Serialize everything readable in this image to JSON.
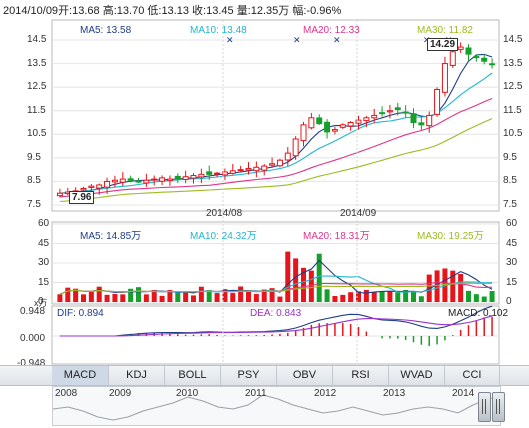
{
  "header": {
    "date": "2014/10/09",
    "open_label": "开:",
    "open": "13.68",
    "high_label": "高:",
    "high": "13.70",
    "low_label": "低:",
    "low": "13.13",
    "close_label": "收:",
    "close": "13.45",
    "volume_label": "量:",
    "volume": "12.35万",
    "change_label": "幅:",
    "change": "-0.96%"
  },
  "price_panel": {
    "ma5": "MA5: 13.58",
    "ma10": "MA10: 13.48",
    "ma20": "MA20: 12.33",
    "ma30": "MA30: 11.82",
    "y_ticks": [
      "14.5",
      "13.5",
      "12.5",
      "11.5",
      "10.5",
      "9.5",
      "8.5",
      "7.5"
    ],
    "y_ticks_right": [
      "14.5",
      "13.5",
      "12.5",
      "11.5",
      "10.5",
      "9.5",
      "8.5",
      "7.5"
    ],
    "max_callout": "14.29",
    "min_callout": "7.96",
    "x_labels": [
      "2014/08",
      "2014/09"
    ]
  },
  "volume_panel": {
    "ma5": "MA5: 14.85万",
    "ma10": "MA10: 24.32万",
    "ma20": "MA20: 18.31万",
    "ma30": "MA30: 19.25万",
    "y_ticks": [
      "60",
      "45",
      "30",
      "15",
      "0"
    ],
    "y_ticks_right": [
      "60",
      "45",
      "30",
      "15",
      "0"
    ],
    "unit": "x万"
  },
  "macd_panel": {
    "dif": "DIF: 0.894",
    "dea": "DEA: 0.843",
    "macd": "MACD: 0.102",
    "y_ticks": [
      "0.948",
      "0.000",
      "-0.948"
    ]
  },
  "tabs": [
    "MACD",
    "KDJ",
    "BOLL",
    "PSY",
    "OBV",
    "RSI",
    "WVAD",
    "CCI"
  ],
  "active_tab": "MACD",
  "overview": {
    "years": [
      "2008",
      "2009",
      "2010",
      "2011",
      "2012",
      "2013",
      "2014"
    ]
  },
  "colors": {
    "up": "#e8141b",
    "down": "#14a02a",
    "ma5": "#1f3c88",
    "ma10": "#1fb8d0",
    "ma20": "#e0338a",
    "ma30": "#9cbb22",
    "grid": "#e4e4e4"
  },
  "chart_data": {
    "type": "candlestick",
    "series_ma_close": [
      8.0,
      8.05,
      8.1,
      8.2,
      8.3,
      8.35,
      8.5,
      8.55,
      8.6,
      8.55,
      8.5,
      8.55,
      8.6,
      8.65,
      8.6,
      8.6,
      8.7,
      8.75,
      8.8,
      8.8,
      8.85,
      8.9,
      8.95,
      9.0,
      9.05,
      9.1,
      9.15,
      9.25,
      9.4,
      9.7,
      10.3,
      10.9,
      11.2,
      10.95,
      10.6,
      10.7,
      10.9,
      11.0,
      11.1,
      11.2,
      11.3,
      11.4,
      11.5,
      11.55,
      11.4,
      11.0,
      10.9,
      11.3,
      12.4,
      13.5,
      14.0,
      14.2,
      13.9,
      13.75,
      13.6,
      13.45
    ]
  }
}
